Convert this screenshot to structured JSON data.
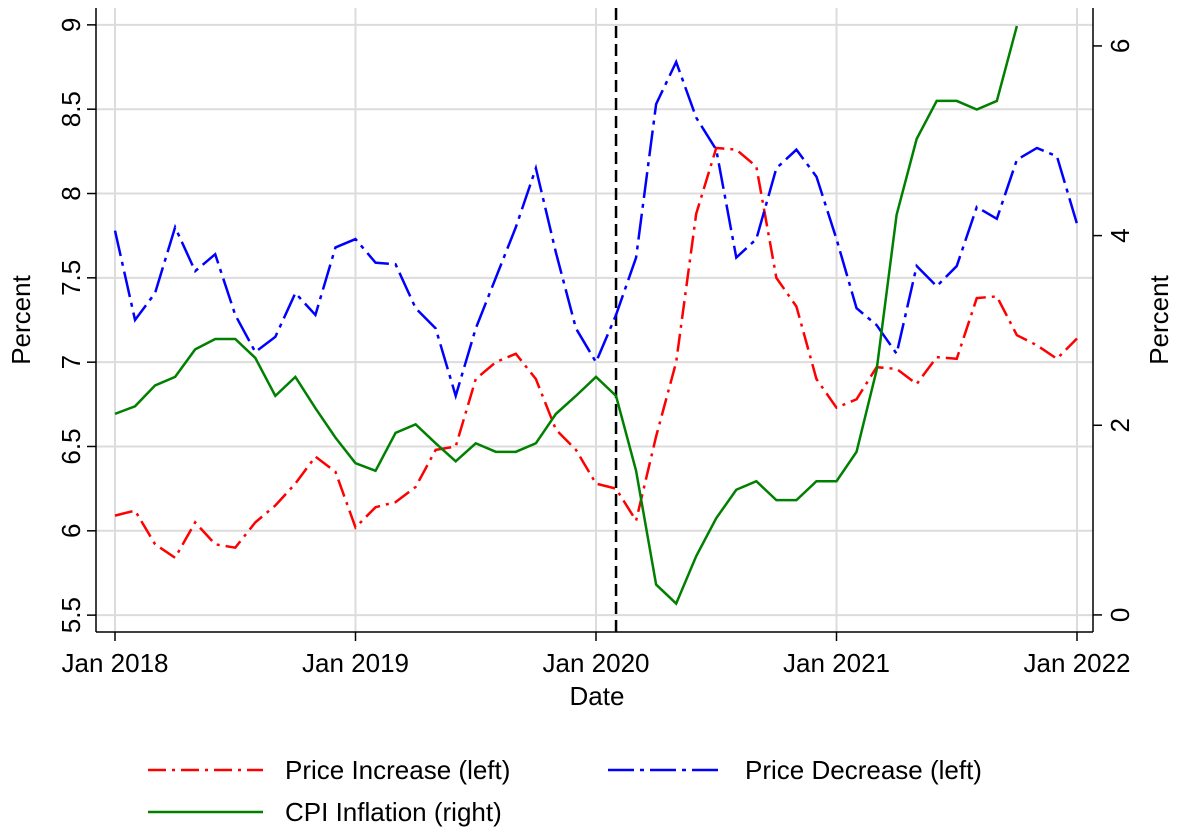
{
  "chart_data": {
    "type": "line",
    "x": [
      "2018-01",
      "2018-02",
      "2018-03",
      "2018-04",
      "2018-05",
      "2018-06",
      "2018-07",
      "2018-08",
      "2018-09",
      "2018-10",
      "2018-11",
      "2018-12",
      "2019-01",
      "2019-02",
      "2019-03",
      "2019-04",
      "2019-05",
      "2019-06",
      "2019-07",
      "2019-08",
      "2019-09",
      "2019-10",
      "2019-11",
      "2019-12",
      "2020-01",
      "2020-02",
      "2020-03",
      "2020-04",
      "2020-05",
      "2020-06",
      "2020-07",
      "2020-08",
      "2020-09",
      "2020-10",
      "2020-11",
      "2020-12",
      "2021-01",
      "2021-02",
      "2021-03",
      "2021-04",
      "2021-05",
      "2021-06",
      "2021-07",
      "2021-08",
      "2021-09",
      "2021-10",
      "2021-11",
      "2021-12",
      "2022-01"
    ],
    "series": [
      {
        "name": "Price Increase (left)",
        "color": "#ff0000",
        "dash": "18 6 3 6",
        "values": [
          6.09,
          6.12,
          5.92,
          5.84,
          6.05,
          5.92,
          5.9,
          6.05,
          6.15,
          6.28,
          6.44,
          6.35,
          6.02,
          6.14,
          6.17,
          6.26,
          6.48,
          6.5,
          6.9,
          7.0,
          7.05,
          6.9,
          6.6,
          6.48,
          6.28,
          6.25,
          6.06,
          6.56,
          7.0,
          7.88,
          8.27,
          8.26,
          8.16,
          7.5,
          7.33,
          6.9,
          6.73,
          6.78,
          6.97,
          6.96,
          6.87,
          7.03,
          7.02,
          7.38,
          7.39,
          7.16,
          7.1,
          7.02,
          7.14
        ]
      },
      {
        "name": "Price Decrease (left)",
        "color": "#0000ff",
        "dash": "26 6 4 6",
        "values": [
          7.78,
          7.25,
          7.41,
          7.8,
          7.54,
          7.64,
          7.28,
          7.06,
          7.15,
          7.41,
          7.28,
          7.68,
          7.73,
          7.59,
          7.58,
          7.32,
          7.2,
          6.8,
          7.2,
          7.5,
          7.8,
          8.15,
          7.65,
          7.2,
          7.0,
          7.28,
          7.62,
          8.53,
          8.78,
          8.45,
          8.26,
          7.62,
          7.73,
          8.15,
          8.26,
          8.1,
          7.73,
          7.32,
          7.22,
          7.05,
          7.57,
          7.45,
          7.57,
          7.92,
          7.85,
          8.2,
          8.27,
          8.22,
          7.82
        ]
      },
      {
        "name": "CPI Inflation (right)",
        "color": "#008000",
        "axis": "y2",
        "values": [
          2.12,
          2.2,
          2.42,
          2.51,
          2.8,
          2.91,
          2.91,
          2.71,
          2.31,
          2.51,
          2.18,
          1.87,
          1.6,
          1.52,
          1.92,
          2.01,
          1.81,
          1.62,
          1.81,
          1.72,
          1.72,
          1.81,
          2.12,
          2.31,
          2.51,
          2.31,
          1.52,
          0.32,
          0.12,
          0.62,
          1.02,
          1.32,
          1.41,
          1.21,
          1.21,
          1.41,
          1.41,
          1.72,
          2.58,
          4.22,
          5.02,
          5.42,
          5.42,
          5.33,
          5.42,
          6.21,
          null,
          null,
          null
        ]
      }
    ],
    "xlim": [
      "2018-01",
      "2022-01"
    ],
    "xticks": [
      {
        "value": "2018-01",
        "label": "Jan 2018"
      },
      {
        "value": "2019-01",
        "label": "Jan 2019"
      },
      {
        "value": "2020-01",
        "label": "Jan 2020"
      },
      {
        "value": "2021-01",
        "label": "Jan 2021"
      },
      {
        "value": "2022-01",
        "label": "Jan 2022"
      }
    ],
    "ylim": [
      5.4,
      9.1
    ],
    "yticks": [
      5.5,
      6,
      6.5,
      7,
      7.5,
      8,
      8.5,
      9
    ],
    "y2lim": [
      -0.18,
      6.4
    ],
    "y2ticks": [
      0,
      2,
      4,
      6
    ],
    "xlabel": "Date",
    "ylabel": "Percent",
    "y2label": "Percent",
    "vline": "2020-02",
    "grid": true,
    "legend": "bottom"
  }
}
